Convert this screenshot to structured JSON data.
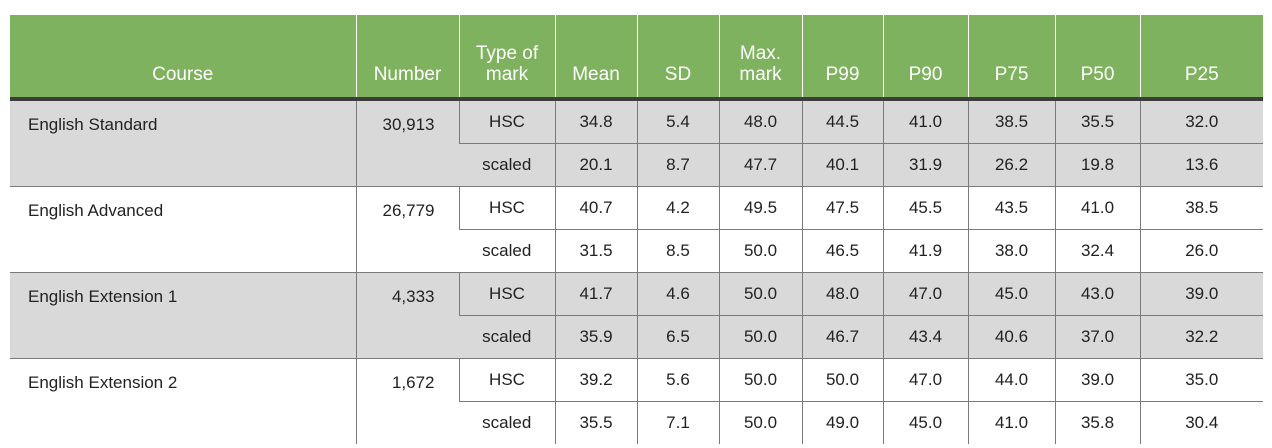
{
  "headers": {
    "course": "Course",
    "number": "Number",
    "type_line1": "Type of",
    "type_line2": "mark",
    "mean": "Mean",
    "sd": "SD",
    "max_line1": "Max.",
    "max_line2": "mark",
    "p99": "P99",
    "p90": "P90",
    "p75": "P75",
    "p50": "P50",
    "p25": "P25"
  },
  "rows": [
    {
      "course": "English Standard",
      "number": "30,913",
      "hsc": {
        "type": "HSC",
        "mean": "34.8",
        "sd": "5.4",
        "max": "48.0",
        "p99": "44.5",
        "p90": "41.0",
        "p75": "38.5",
        "p50": "35.5",
        "p25": "32.0"
      },
      "scaled": {
        "type": "scaled",
        "mean": "20.1",
        "sd": "8.7",
        "max": "47.7",
        "p99": "40.1",
        "p90": "31.9",
        "p75": "26.2",
        "p50": "19.8",
        "p25": "13.6"
      }
    },
    {
      "course": "English Advanced",
      "number": "26,779",
      "hsc": {
        "type": "HSC",
        "mean": "40.7",
        "sd": "4.2",
        "max": "49.5",
        "p99": "47.5",
        "p90": "45.5",
        "p75": "43.5",
        "p50": "41.0",
        "p25": "38.5"
      },
      "scaled": {
        "type": "scaled",
        "mean": "31.5",
        "sd": "8.5",
        "max": "50.0",
        "p99": "46.5",
        "p90": "41.9",
        "p75": "38.0",
        "p50": "32.4",
        "p25": "26.0"
      }
    },
    {
      "course": "English Extension 1",
      "number": "4,333",
      "hsc": {
        "type": "HSC",
        "mean": "41.7",
        "sd": "4.6",
        "max": "50.0",
        "p99": "48.0",
        "p90": "47.0",
        "p75": "45.0",
        "p50": "43.0",
        "p25": "39.0"
      },
      "scaled": {
        "type": "scaled",
        "mean": "35.9",
        "sd": "6.5",
        "max": "50.0",
        "p99": "46.7",
        "p90": "43.4",
        "p75": "40.6",
        "p50": "37.0",
        "p25": "32.2"
      }
    },
    {
      "course": "English Extension 2",
      "number": "1,672",
      "hsc": {
        "type": "HSC",
        "mean": "39.2",
        "sd": "5.6",
        "max": "50.0",
        "p99": "50.0",
        "p90": "47.0",
        "p75": "44.0",
        "p50": "39.0",
        "p25": "35.0"
      },
      "scaled": {
        "type": "scaled",
        "mean": "35.5",
        "sd": "7.1",
        "max": "50.0",
        "p99": "49.0",
        "p90": "45.0",
        "p75": "41.0",
        "p50": "35.8",
        "p25": "30.4"
      }
    }
  ],
  "colors": {
    "header_bg": "#7fb25e",
    "grey_band": "#d9d9d9"
  }
}
